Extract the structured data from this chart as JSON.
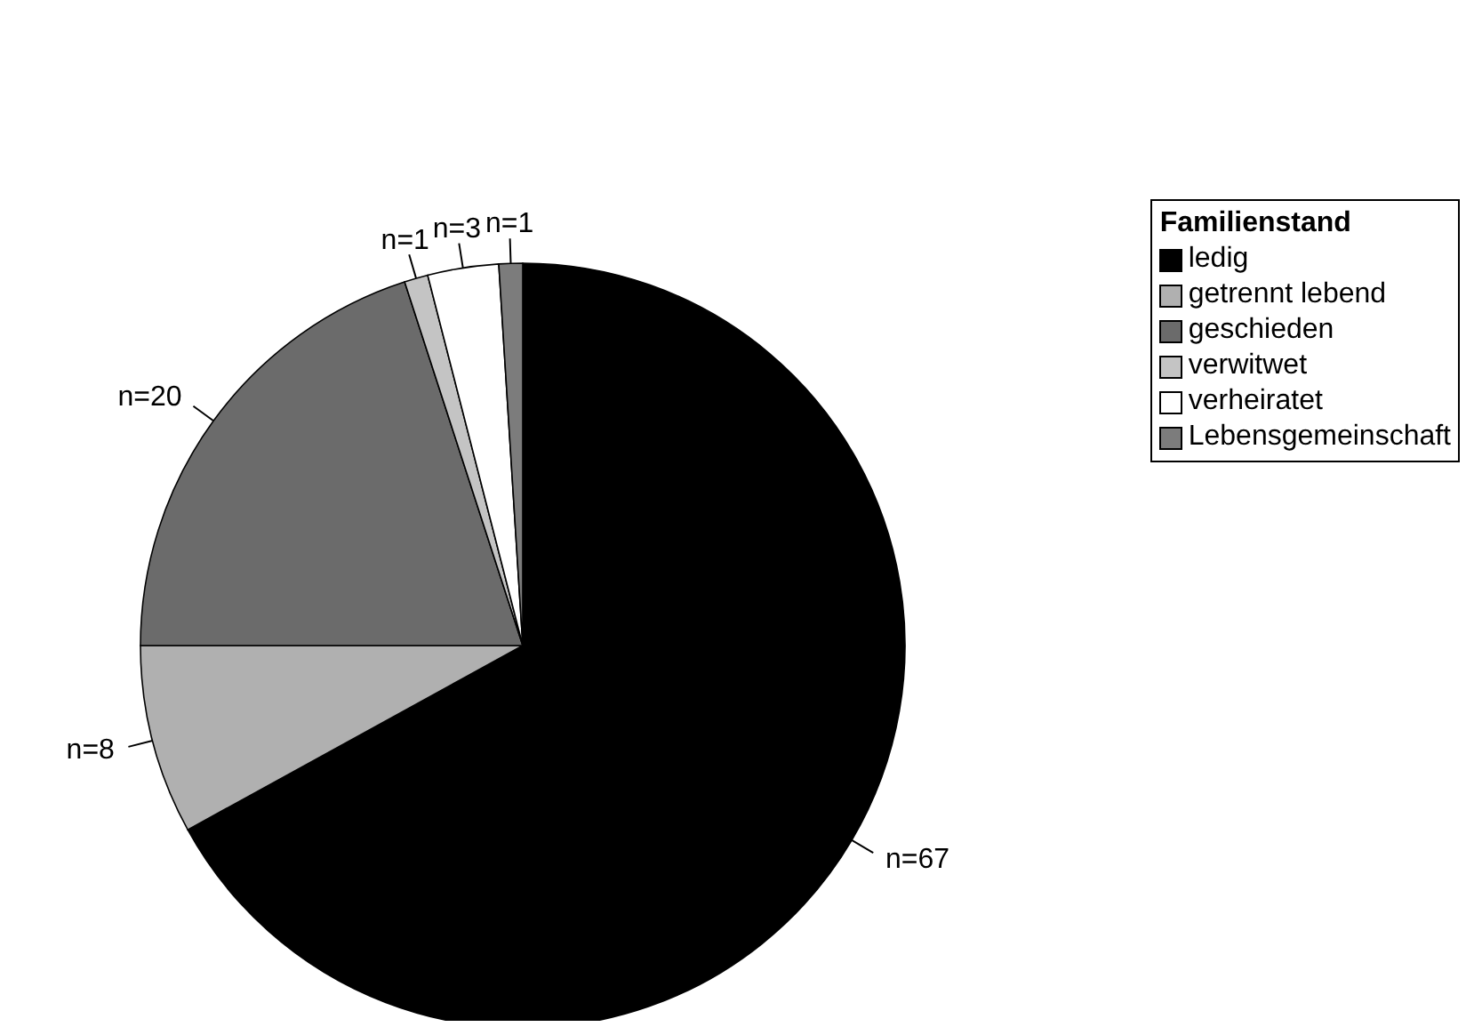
{
  "chart_data": {
    "type": "pie",
    "legend_title": "Familienstand",
    "categories": [
      "ledig",
      "getrennt lebend",
      "geschieden",
      "verwitwet",
      "verheiratet",
      "Lebensgemeinschaft"
    ],
    "values": [
      67,
      8,
      20,
      1,
      3,
      1
    ],
    "value_labels": [
      "n=67",
      "n=8",
      "n=20",
      "n=1",
      "n=3",
      "n=1"
    ],
    "colors": [
      "#000000",
      "#b0b0b0",
      "#6b6b6b",
      "#c4c4c4",
      "#ffffff",
      "#7c7c7c"
    ],
    "legend": "right"
  }
}
